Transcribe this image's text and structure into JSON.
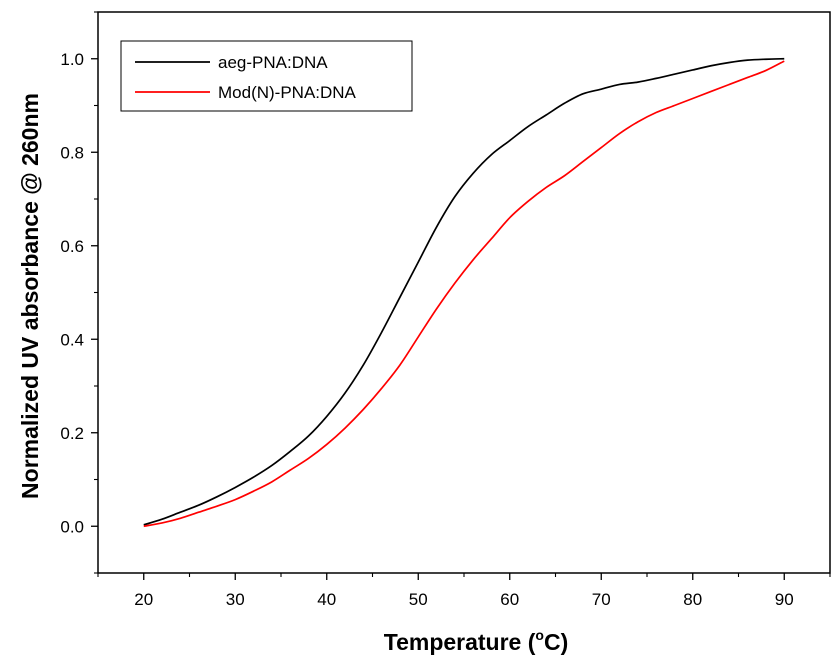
{
  "chart_data": {
    "type": "line",
    "xlabel_prefix": "Temperature (",
    "xlabel_degree": "o",
    "xlabel_suffix": "C)",
    "ylabel": "Normalized UV absorbance @ 260nm",
    "xlim": [
      15,
      95
    ],
    "ylim": [
      -0.1,
      1.1
    ],
    "x_ticks": [
      20,
      30,
      40,
      50,
      60,
      70,
      80,
      90
    ],
    "y_ticks": [
      0.0,
      0.2,
      0.4,
      0.6,
      0.8,
      1.0
    ],
    "y_tick_labels": [
      "0.0",
      "0.2",
      "0.4",
      "0.6",
      "0.8",
      "1.0"
    ],
    "grid": false,
    "legend_position": "top-left",
    "series": [
      {
        "name": "aeg-PNA:DNA",
        "color": "#000000",
        "x": [
          20,
          22,
          24,
          26,
          28,
          30,
          32,
          34,
          36,
          38,
          40,
          42,
          44,
          46,
          48,
          50,
          52,
          54,
          56,
          58,
          60,
          62,
          64,
          66,
          68,
          70,
          72,
          74,
          76,
          78,
          80,
          82,
          84,
          86,
          88,
          90
        ],
        "y": [
          0.003,
          0.015,
          0.03,
          0.045,
          0.063,
          0.083,
          0.105,
          0.13,
          0.16,
          0.193,
          0.235,
          0.285,
          0.345,
          0.415,
          0.49,
          0.565,
          0.64,
          0.705,
          0.755,
          0.795,
          0.825,
          0.855,
          0.88,
          0.905,
          0.925,
          0.935,
          0.945,
          0.95,
          0.958,
          0.967,
          0.976,
          0.985,
          0.992,
          0.997,
          0.999,
          1.0
        ]
      },
      {
        "name": "Mod(N)-PNA:DNA",
        "color": "#ff0000",
        "x": [
          20,
          22,
          24,
          26,
          28,
          30,
          32,
          34,
          36,
          38,
          40,
          42,
          44,
          46,
          48,
          50,
          52,
          54,
          56,
          58,
          60,
          62,
          64,
          66,
          68,
          70,
          72,
          74,
          76,
          78,
          80,
          82,
          84,
          86,
          88,
          90
        ],
        "y": [
          0.0,
          0.007,
          0.017,
          0.03,
          0.043,
          0.057,
          0.075,
          0.095,
          0.12,
          0.145,
          0.175,
          0.21,
          0.25,
          0.295,
          0.345,
          0.405,
          0.465,
          0.52,
          0.57,
          0.615,
          0.66,
          0.695,
          0.725,
          0.75,
          0.78,
          0.81,
          0.84,
          0.865,
          0.885,
          0.9,
          0.915,
          0.93,
          0.945,
          0.96,
          0.975,
          0.995
        ]
      }
    ]
  }
}
